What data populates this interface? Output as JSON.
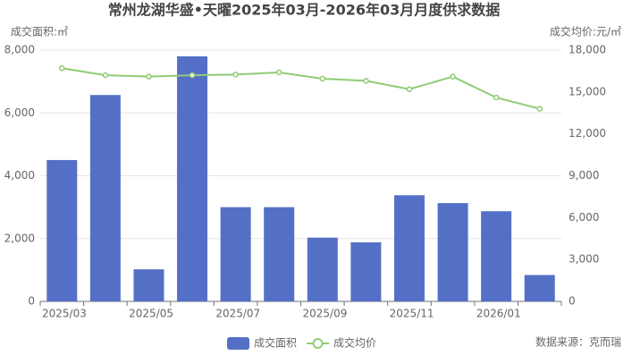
{
  "chart_data": {
    "type": "bar-line",
    "title": "常州龙湖华盛•天曜2025年03月-2026年03月月度供求数据",
    "y_label": "成交面积:㎡",
    "y2_label": "成交均价:元/㎡",
    "source": "数据来源：克而瑞",
    "categories": [
      "2025/03",
      null,
      "2025/05",
      null,
      "2025/07",
      null,
      "2025/09",
      null,
      "2025/11",
      null,
      "2026/01",
      null
    ],
    "series": [
      {
        "name": "成交面积",
        "type": "bar",
        "color": "#5470c6",
        "values": [
          4500,
          6570,
          1020,
          7800,
          3000,
          3000,
          2030,
          1880,
          3380,
          3130,
          2870,
          840
        ]
      },
      {
        "name": "成交均价",
        "type": "line",
        "axis": "y2",
        "color": "#91cc75",
        "values": [
          16700,
          16200,
          16100,
          16200,
          16250,
          16400,
          15950,
          15800,
          15200,
          16100,
          14600,
          13800
        ]
      }
    ],
    "ylim": [
      0,
      8000
    ],
    "yticks": [
      0,
      {
        "value": 2000,
        "label": "2,000"
      },
      {
        "value": 4000,
        "label": "4,000"
      },
      {
        "value": 6000,
        "label": "6,000"
      },
      {
        "value": 8000,
        "label": "8,000"
      }
    ],
    "y2lim": [
      0,
      18000
    ],
    "y2ticks": [
      0,
      {
        "value": 3000,
        "label": "3,000"
      },
      {
        "value": 6000,
        "label": "6,000"
      },
      {
        "value": 9000,
        "label": "9,000"
      },
      {
        "value": 12000,
        "label": "12,000"
      },
      {
        "value": 15000,
        "label": "15,000"
      },
      {
        "value": 18000,
        "label": "18,000"
      }
    ],
    "grid": true
  }
}
